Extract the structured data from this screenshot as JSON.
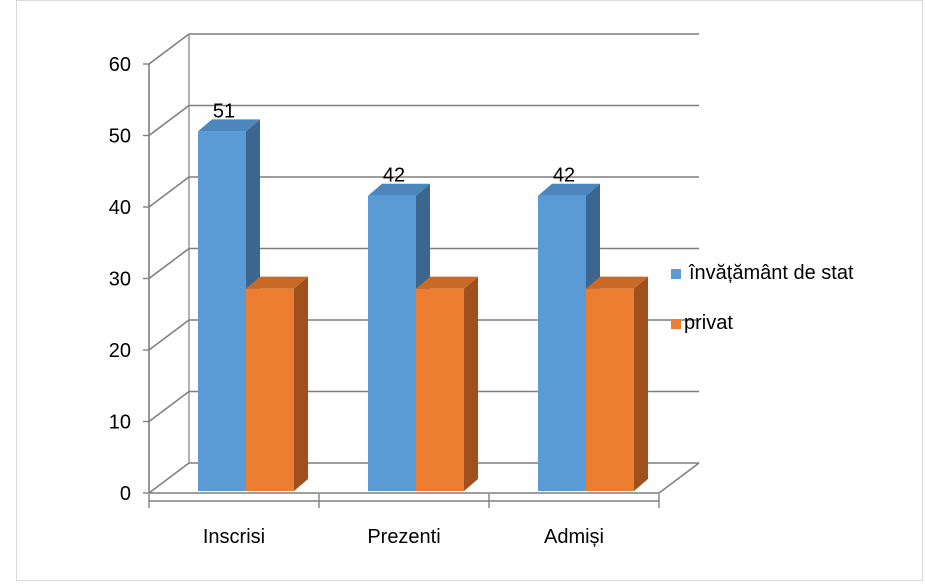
{
  "chart_data": {
    "type": "bar",
    "style": "3d-clustered-column",
    "categories": [
      "Inscrisi",
      "Prezenti",
      "Admiși"
    ],
    "series": [
      {
        "name": "învățământ de stat",
        "values": [
          51,
          42,
          42
        ],
        "data_labels": [
          "51",
          "42",
          "42"
        ]
      },
      {
        "name": "privat",
        "values": [
          29,
          29,
          29
        ],
        "data_labels": []
      }
    ],
    "ylim": [
      0,
      60
    ],
    "y_ticks": [
      0,
      10,
      20,
      30,
      40,
      50,
      60
    ],
    "grid": true,
    "legend_position": "right",
    "colors": {
      "series": [
        "#5b9bd5",
        "#ed7d31"
      ],
      "series_side": [
        "#3a6690",
        "#a0501d"
      ],
      "series_top": [
        "#4b86bd",
        "#c96a27"
      ],
      "gridline": "#7f7f7f",
      "text": "#000000"
    }
  }
}
